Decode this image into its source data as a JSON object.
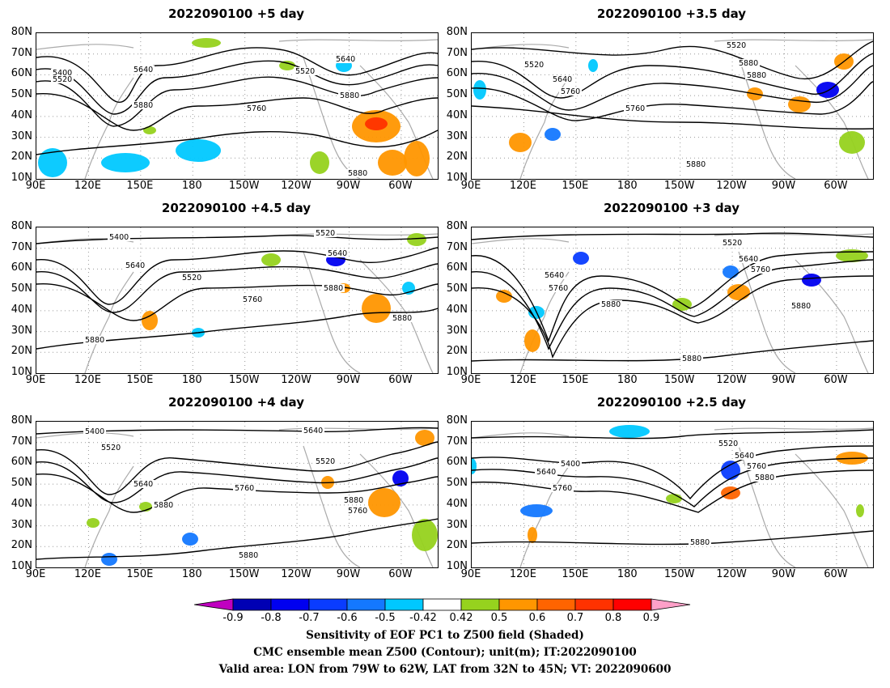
{
  "panels": [
    {
      "title": "2022090100 +5 day",
      "ylabels": [
        "80N",
        "70N",
        "60N",
        "50N",
        "40N",
        "30N",
        "20N",
        "10N"
      ],
      "xlabels": [
        "90E",
        "120E",
        "150E",
        "180",
        "150W",
        "120W",
        "90W",
        "60W"
      ],
      "contours": [
        "5400",
        "5520",
        "5640",
        "5880",
        "5760",
        "5640",
        "5520",
        "5880",
        "5880"
      ]
    },
    {
      "title": "2022090100 +3.5 day",
      "ylabels": [
        "80N",
        "70N",
        "60N",
        "50N",
        "40N",
        "30N",
        "20N",
        "10N"
      ],
      "xlabels": [
        "90E",
        "120E",
        "150E",
        "180",
        "150W",
        "120W",
        "90W",
        "60W"
      ],
      "contours": [
        "5520",
        "5640",
        "5760",
        "5760",
        "5880",
        "5520",
        "5880",
        "5880"
      ]
    },
    {
      "title": "2022090100 +4.5 day",
      "ylabels": [
        "80N",
        "70N",
        "60N",
        "50N",
        "40N",
        "30N",
        "20N",
        "10N"
      ],
      "xlabels": [
        "90E",
        "120E",
        "150E",
        "180",
        "150W",
        "120W",
        "90W",
        "60W"
      ],
      "contours": [
        "5400",
        "5640",
        "5520",
        "5760",
        "5520",
        "5640",
        "5880",
        "5880",
        "5880"
      ]
    },
    {
      "title": "2022090100 +3 day",
      "ylabels": [
        "80N",
        "70N",
        "60N",
        "50N",
        "40N",
        "30N",
        "20N",
        "10N"
      ],
      "xlabels": [
        "90E",
        "120E",
        "150E",
        "180",
        "150W",
        "120W",
        "90W",
        "60W"
      ],
      "contours": [
        "5640",
        "5760",
        "5880",
        "5520",
        "5640",
        "5760",
        "5880",
        "5880"
      ]
    },
    {
      "title": "2022090100 +4 day",
      "ylabels": [
        "80N",
        "70N",
        "60N",
        "50N",
        "40N",
        "30N",
        "20N",
        "10N"
      ],
      "xlabels": [
        "90E",
        "120E",
        "150E",
        "180",
        "150W",
        "120W",
        "90W",
        "60W"
      ],
      "contours": [
        "5400",
        "5520",
        "5640",
        "5760",
        "5880",
        "5640",
        "5520",
        "5760",
        "5880",
        "5880"
      ]
    },
    {
      "title": "2022090100 +2.5 day",
      "ylabels": [
        "80N",
        "70N",
        "60N",
        "50N",
        "40N",
        "30N",
        "20N",
        "10N"
      ],
      "xlabels": [
        "90E",
        "120E",
        "150E",
        "180",
        "150W",
        "120W",
        "90W",
        "60W"
      ],
      "contours": [
        "5400",
        "5640",
        "5760",
        "5520",
        "5640",
        "5760",
        "5880",
        "5880"
      ]
    }
  ],
  "colorbar": {
    "labels": [
      "-0.9",
      "-0.8",
      "-0.7",
      "-0.6",
      "-0.5",
      "-0.42",
      "0.42",
      "0.5",
      "0.6",
      "0.7",
      "0.8",
      "0.9"
    ],
    "colors": [
      "#c000c0",
      "#0000b4",
      "#0000f0",
      "#0a3cff",
      "#1478ff",
      "#00c8ff",
      "#ffffff",
      "#96d21e",
      "#ff9600",
      "#ff6400",
      "#ff3200",
      "#ff0000",
      "#ffa0c8"
    ]
  },
  "caption": {
    "line1": "Sensitivity of EOF PC1 to Z500 field (Shaded)",
    "line2": "CMC ensemble mean Z500 (Contour); unit(m); IT:2022090100",
    "line3": "Valid area: LON from 79W to 62W, LAT from 32N to 45N; VT: 2022090600"
  }
}
